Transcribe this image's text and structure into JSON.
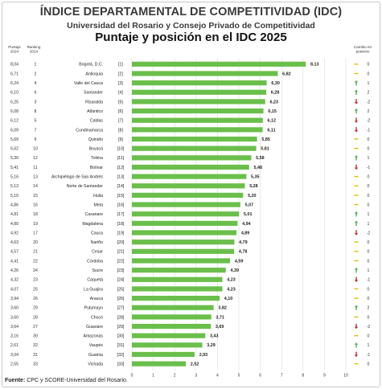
{
  "header": {
    "title": "ÍNDICE DEPARTAMENTAL DE COMPETITIVIDAD (IDC)",
    "subtitle": "Universidad del Rosario y Consejo Privado de Competitividad",
    "chart_title": "Puntaje y posición en el IDC 2025"
  },
  "columns": {
    "puntaje_2024": "Puntaje 2024",
    "ranking_2024": "Ranking 2024",
    "cambio": "Cambio en posición"
  },
  "source": {
    "label": "Fuente:",
    "text": "CPC y SCORE-Universidad del Rosario."
  },
  "colors": {
    "bar": "#6abf4b",
    "up": "#4caf50",
    "down": "#c62828",
    "same": "#e6b800"
  },
  "chart_data": {
    "type": "bar",
    "orientation": "horizontal",
    "title": "Puntaje y posición en el IDC 2025",
    "xlim": [
      0,
      10
    ],
    "xticks": [
      0,
      1,
      2,
      3,
      4,
      5,
      6,
      7,
      8,
      9,
      10
    ],
    "grid": true,
    "rows": [
      {
        "dept": "Bogotá, D.C.",
        "rank": "[1]",
        "value": 8.13,
        "label": "8,13",
        "p2024": "8,04",
        "r2024": "1",
        "dir": "same",
        "change": "0"
      },
      {
        "dept": "Antioquia",
        "rank": "[2]",
        "value": 6.82,
        "label": "6,82",
        "p2024": "6,71",
        "r2024": "2",
        "dir": "same",
        "change": "0"
      },
      {
        "dept": "Valle del Cauca",
        "rank": "[3]",
        "value": 6.3,
        "label": "6,30",
        "p2024": "6,24",
        "r2024": "4",
        "dir": "up",
        "change": "1"
      },
      {
        "dept": "Santander",
        "rank": "[4]",
        "value": 6.28,
        "label": "6,28",
        "p2024": "6,10",
        "r2024": "6",
        "dir": "up",
        "change": "2"
      },
      {
        "dept": "Risaralda",
        "rank": "[5]",
        "value": 6.23,
        "label": "6,23",
        "p2024": "6,25",
        "r2024": "3",
        "dir": "down",
        "change": "-2"
      },
      {
        "dept": "Atlántico",
        "rank": "[6]",
        "value": 6.15,
        "label": "6,15",
        "p2024": "6,08",
        "r2024": "8",
        "dir": "up",
        "change": "2"
      },
      {
        "dept": "Caldas",
        "rank": "[7]",
        "value": 6.12,
        "label": "6,12",
        "p2024": "6,12",
        "r2024": "5",
        "dir": "down",
        "change": "-2"
      },
      {
        "dept": "Cundinamarca",
        "rank": "[8]",
        "value": 6.11,
        "label": "6,11",
        "p2024": "6,09",
        "r2024": "7",
        "dir": "down",
        "change": "-1"
      },
      {
        "dept": "Quindío",
        "rank": "[9]",
        "value": 5.85,
        "label": "5,85",
        "p2024": "5,69",
        "r2024": "9",
        "dir": "same",
        "change": "0"
      },
      {
        "dept": "Boyacá",
        "rank": "[10]",
        "value": 5.81,
        "label": "5,81",
        "p2024": "5,62",
        "r2024": "10",
        "dir": "same",
        "change": "0"
      },
      {
        "dept": "Tolima",
        "rank": "[11]",
        "value": 5.58,
        "label": "5,58",
        "p2024": "5,30",
        "r2024": "12",
        "dir": "up",
        "change": "1"
      },
      {
        "dept": "Bolívar",
        "rank": "[12]",
        "value": 5.48,
        "label": "5,48",
        "p2024": "5,41",
        "r2024": "11",
        "dir": "down",
        "change": "-1"
      },
      {
        "dept": "Archipiélago de San Andrés",
        "rank": "[13]",
        "value": 5.35,
        "label": "5,35",
        "p2024": "5,16",
        "r2024": "13",
        "dir": "same",
        "change": "0"
      },
      {
        "dept": "Norte de Santander",
        "rank": "[14]",
        "value": 5.28,
        "label": "5,28",
        "p2024": "5,13",
        "r2024": "14",
        "dir": "same",
        "change": "0"
      },
      {
        "dept": "Huila",
        "rank": "[15]",
        "value": 5.2,
        "label": "5,20",
        "p2024": "5,10",
        "r2024": "15",
        "dir": "same",
        "change": "0"
      },
      {
        "dept": "Meta",
        "rank": "[16]",
        "value": 5.07,
        "label": "5,07",
        "p2024": "4,86",
        "r2024": "16",
        "dir": "same",
        "change": "0"
      },
      {
        "dept": "Casanare",
        "rank": "[17]",
        "value": 5.01,
        "label": "5,01",
        "p2024": "4,81",
        "r2024": "18",
        "dir": "up",
        "change": "1"
      },
      {
        "dept": "Magdalena",
        "rank": "[18]",
        "value": 4.94,
        "label": "4,94",
        "p2024": "4,80",
        "r2024": "19",
        "dir": "up",
        "change": "1"
      },
      {
        "dept": "Cauca",
        "rank": "[19]",
        "value": 4.89,
        "label": "4,89",
        "p2024": "4,92",
        "r2024": "17",
        "dir": "down",
        "change": "-2"
      },
      {
        "dept": "Nariño",
        "rank": "[20]",
        "value": 4.79,
        "label": "4,79",
        "p2024": "4,63",
        "r2024": "20",
        "dir": "same",
        "change": "0"
      },
      {
        "dept": "Cesar",
        "rank": "[21]",
        "value": 4.78,
        "label": "4,78",
        "p2024": "4,57",
        "r2024": "21",
        "dir": "same",
        "change": "0"
      },
      {
        "dept": "Córdoba",
        "rank": "[22]",
        "value": 4.59,
        "label": "4,59",
        "p2024": "4,41",
        "r2024": "22",
        "dir": "same",
        "change": "0"
      },
      {
        "dept": "Sucre",
        "rank": "[23]",
        "value": 4.39,
        "label": "4,39",
        "p2024": "4,26",
        "r2024": "24",
        "dir": "up",
        "change": "1"
      },
      {
        "dept": "Caquetá",
        "rank": "[24]",
        "value": 4.23,
        "label": "4,23",
        "p2024": "4,32",
        "r2024": "23",
        "dir": "down",
        "change": "-1"
      },
      {
        "dept": "La Guajira",
        "rank": "[25]",
        "value": 4.23,
        "label": "4,23",
        "p2024": "4,07",
        "r2024": "25",
        "dir": "same",
        "change": "0"
      },
      {
        "dept": "Arauca",
        "rank": "[26]",
        "value": 4.1,
        "label": "4,10",
        "p2024": "3,94",
        "r2024": "26",
        "dir": "same",
        "change": "0"
      },
      {
        "dept": "Putumayo",
        "rank": "[27]",
        "value": 3.82,
        "label": "3,82",
        "p2024": "3,60",
        "r2024": "29",
        "dir": "up",
        "change": "2"
      },
      {
        "dept": "Chocó",
        "rank": "[28]",
        "value": 3.71,
        "label": "3,71",
        "p2024": "3,60",
        "r2024": "28",
        "dir": "same",
        "change": "0"
      },
      {
        "dept": "Guaviare",
        "rank": "[29]",
        "value": 3.69,
        "label": "3,69",
        "p2024": "3,64",
        "r2024": "27",
        "dir": "down",
        "change": "-2"
      },
      {
        "dept": "Amazonas",
        "rank": "[30]",
        "value": 3.43,
        "label": "3,43",
        "p2024": "3,16",
        "r2024": "30",
        "dir": "same",
        "change": "0"
      },
      {
        "dept": "Vaupés",
        "rank": "[31]",
        "value": 3.29,
        "label": "3,29",
        "p2024": "2,61",
        "r2024": "32",
        "dir": "up",
        "change": "1"
      },
      {
        "dept": "Guainía",
        "rank": "[32]",
        "value": 2.93,
        "label": "2,93",
        "p2024": "3,04",
        "r2024": "31",
        "dir": "down",
        "change": "-1"
      },
      {
        "dept": "Vichada",
        "rank": "[33]",
        "value": 2.52,
        "label": "2,52",
        "p2024": "2,55",
        "r2024": "33",
        "dir": "same",
        "change": "0"
      }
    ]
  }
}
